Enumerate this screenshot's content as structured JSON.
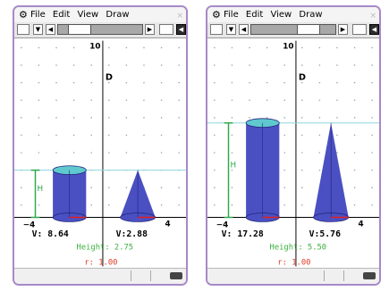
{
  "menu": {
    "file": "File",
    "edit": "Edit",
    "view": "View",
    "draw": "Draw"
  },
  "icons": {
    "app_menu": "gear-icon",
    "close": "close-icon",
    "view_window": "view-window-icon",
    "dropdown": "triangle-down-icon",
    "scroll_left": "triangle-left-icon",
    "scroll_right": "triangle-right-icon",
    "zoom": "zoom-icon",
    "battery": "battery-icon"
  },
  "glyphs": {
    "gear": "⚙",
    "close": "×",
    "down": "▼",
    "left": "◀",
    "right": "▶"
  },
  "screens": [
    {
      "y_axis_top_label": "10",
      "point_label": "D",
      "x_min_label": "−4",
      "x_max_label": "4",
      "height_marker_label": "H",
      "cylinder_volume": "V: 8.64",
      "cone_volume": "V:2.88",
      "height_readout": "Height: 2.75",
      "radius_readout": "r: 1.00",
      "height_value": 2.75,
      "radius_value": 1.0
    },
    {
      "y_axis_top_label": "10",
      "point_label": "D",
      "x_min_label": "−4",
      "x_max_label": "4",
      "height_marker_label": "H",
      "cylinder_volume": "V: 17.28",
      "cone_volume": "V:5.76",
      "height_readout": "Height: 5.50",
      "radius_readout": "r: 1.00",
      "height_value": 5.5,
      "radius_value": 1.0
    }
  ],
  "colors": {
    "shape_fill": "#4a50c2",
    "top_cap": "#5fc9cf",
    "height_line": "#8fd6de",
    "height_marker": "#2ea84a",
    "radius_line": "#e02020",
    "height_text": "#3db03d",
    "radius_text": "#e03a24",
    "frame": "#a889c8"
  }
}
